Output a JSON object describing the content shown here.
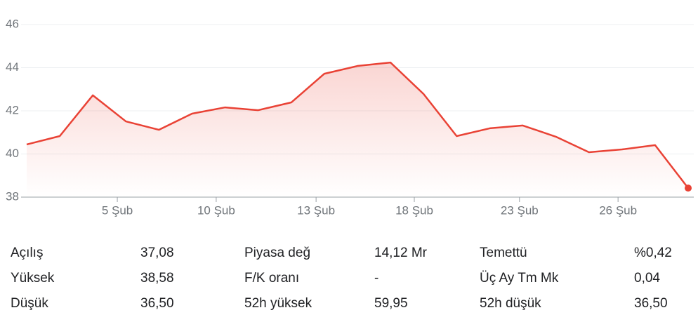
{
  "chart_data": {
    "type": "line",
    "x": [
      0,
      1,
      2,
      3,
      4,
      5,
      6,
      7,
      8,
      9,
      10,
      11,
      12,
      13,
      14,
      15,
      16,
      17,
      18,
      19,
      20
    ],
    "values": [
      40.44,
      40.83,
      42.72,
      41.51,
      41.12,
      41.87,
      42.16,
      42.03,
      42.39,
      43.72,
      44.08,
      44.24,
      42.78,
      40.83,
      41.19,
      41.32,
      40.8,
      40.08,
      40.21,
      40.41,
      38.42
    ],
    "color": "#e94235",
    "xlim": [
      0,
      20
    ],
    "xticks": [
      {
        "value": 2.74,
        "label": "5 Şub"
      },
      {
        "value": 5.73,
        "label": "10 Şub"
      },
      {
        "value": 8.75,
        "label": "13 Şub"
      },
      {
        "value": 11.72,
        "label": "18 Şub"
      },
      {
        "value": 14.9,
        "label": "23 Şub"
      },
      {
        "value": 17.88,
        "label": "26 Şub"
      }
    ],
    "ylim": [
      38,
      46
    ],
    "yticks": [
      38,
      40,
      42,
      44,
      46
    ],
    "grid": true
  },
  "stats": [
    [
      [
        "Açılış",
        "37,08"
      ],
      [
        "Yüksek",
        "38,58"
      ],
      [
        "Düşük",
        "36,50"
      ]
    ],
    [
      [
        "Piyasa değ",
        "14,12 Mr"
      ],
      [
        "F/K oranı",
        "-"
      ],
      [
        "52h yüksek",
        "59,95"
      ]
    ],
    [
      [
        "Temettü",
        "%0,42"
      ],
      [
        "Üç Ay Tm Mk",
        "0,04"
      ],
      [
        "52h düşük",
        "36,50"
      ]
    ]
  ]
}
